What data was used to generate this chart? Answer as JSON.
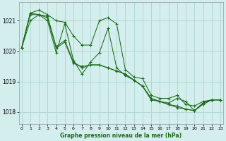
{
  "title": "Graphe pression niveau de la mer (hPa)",
  "bg_color": "#d4eeed",
  "grid_color": "#b0d8d4",
  "line_color": "#1a6b1a",
  "x_ticks": [
    0,
    1,
    2,
    3,
    4,
    5,
    6,
    7,
    8,
    9,
    10,
    11,
    12,
    13,
    14,
    15,
    16,
    17,
    18,
    19,
    20,
    21,
    22,
    23
  ],
  "xlim": [
    -0.3,
    23.3
  ],
  "ylim": [
    1017.6,
    1021.6
  ],
  "yticks": [
    1018,
    1019,
    1020,
    1021
  ],
  "series": [
    [
      1020.1,
      1021.25,
      1021.35,
      1021.2,
      1021.0,
      1020.95,
      1020.5,
      1020.2,
      1020.2,
      1021.0,
      1021.1,
      1020.9,
      1019.4,
      1019.15,
      1019.1,
      1018.55,
      1018.45,
      1018.45,
      1018.55,
      1018.25,
      1018.2,
      1018.35,
      1018.4,
      1018.4
    ],
    [
      1020.1,
      1021.2,
      1021.2,
      1021.1,
      1020.1,
      1020.3,
      1019.6,
      1019.5,
      1019.55,
      1019.55,
      1019.45,
      1019.35,
      1019.25,
      1019.05,
      1018.85,
      1018.45,
      1018.35,
      1018.25,
      1018.2,
      1018.1,
      1018.05,
      1018.3,
      1018.4,
      1018.4
    ],
    [
      1020.1,
      1021.25,
      1021.2,
      1021.15,
      1020.15,
      1020.35,
      1019.65,
      1019.45,
      1019.55,
      1019.55,
      1019.45,
      1019.35,
      1019.25,
      1019.05,
      1018.85,
      1018.45,
      1018.35,
      1018.25,
      1018.15,
      1018.1,
      1018.05,
      1018.25,
      1018.4,
      1018.4
    ],
    [
      1020.1,
      1021.0,
      1021.2,
      1021.0,
      1019.95,
      1020.9,
      1019.7,
      1019.25,
      1019.65,
      1019.95,
      1020.75,
      1019.45,
      1019.2,
      1019.05,
      1018.85,
      1018.4,
      1018.35,
      1018.3,
      1018.45,
      1018.35,
      1018.05,
      1018.3,
      1018.4,
      1018.4
    ]
  ]
}
